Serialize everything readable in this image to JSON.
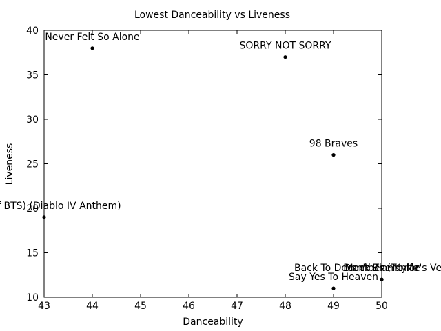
{
  "chart_data": {
    "type": "scatter",
    "title": "Lowest Danceability vs Liveness",
    "xlabel": "Danceability",
    "ylabel": "Liveness",
    "xlim": [
      43,
      50
    ],
    "ylim": [
      10,
      40
    ],
    "xticks": [
      43,
      44,
      45,
      46,
      47,
      48,
      49,
      50
    ],
    "yticks": [
      10,
      15,
      20,
      25,
      30,
      35,
      40
    ],
    "grid": false,
    "legend": "none",
    "point_color": "#000000",
    "points": [
      {
        "x": 44,
        "y": 38,
        "label": "Never Felt So Alone"
      },
      {
        "x": 48,
        "y": 37,
        "label": "SORRY NOT SORRY"
      },
      {
        "x": 49,
        "y": 26,
        "label": "98 Braves"
      },
      {
        "x": 43,
        "y": 19,
        "label": "UGA of BTS) (Diablo IV Anthem)"
      },
      {
        "x": 50,
        "y": 12,
        "label": "Back To December (Taylor's Version)"
      },
      {
        "x": 50,
        "y": 12,
        "label": "Mack The Knife"
      },
      {
        "x": 50,
        "y": 12,
        "label": "Don't Blame Me"
      },
      {
        "x": 49,
        "y": 11,
        "label": "Say Yes To Heaven"
      }
    ]
  }
}
